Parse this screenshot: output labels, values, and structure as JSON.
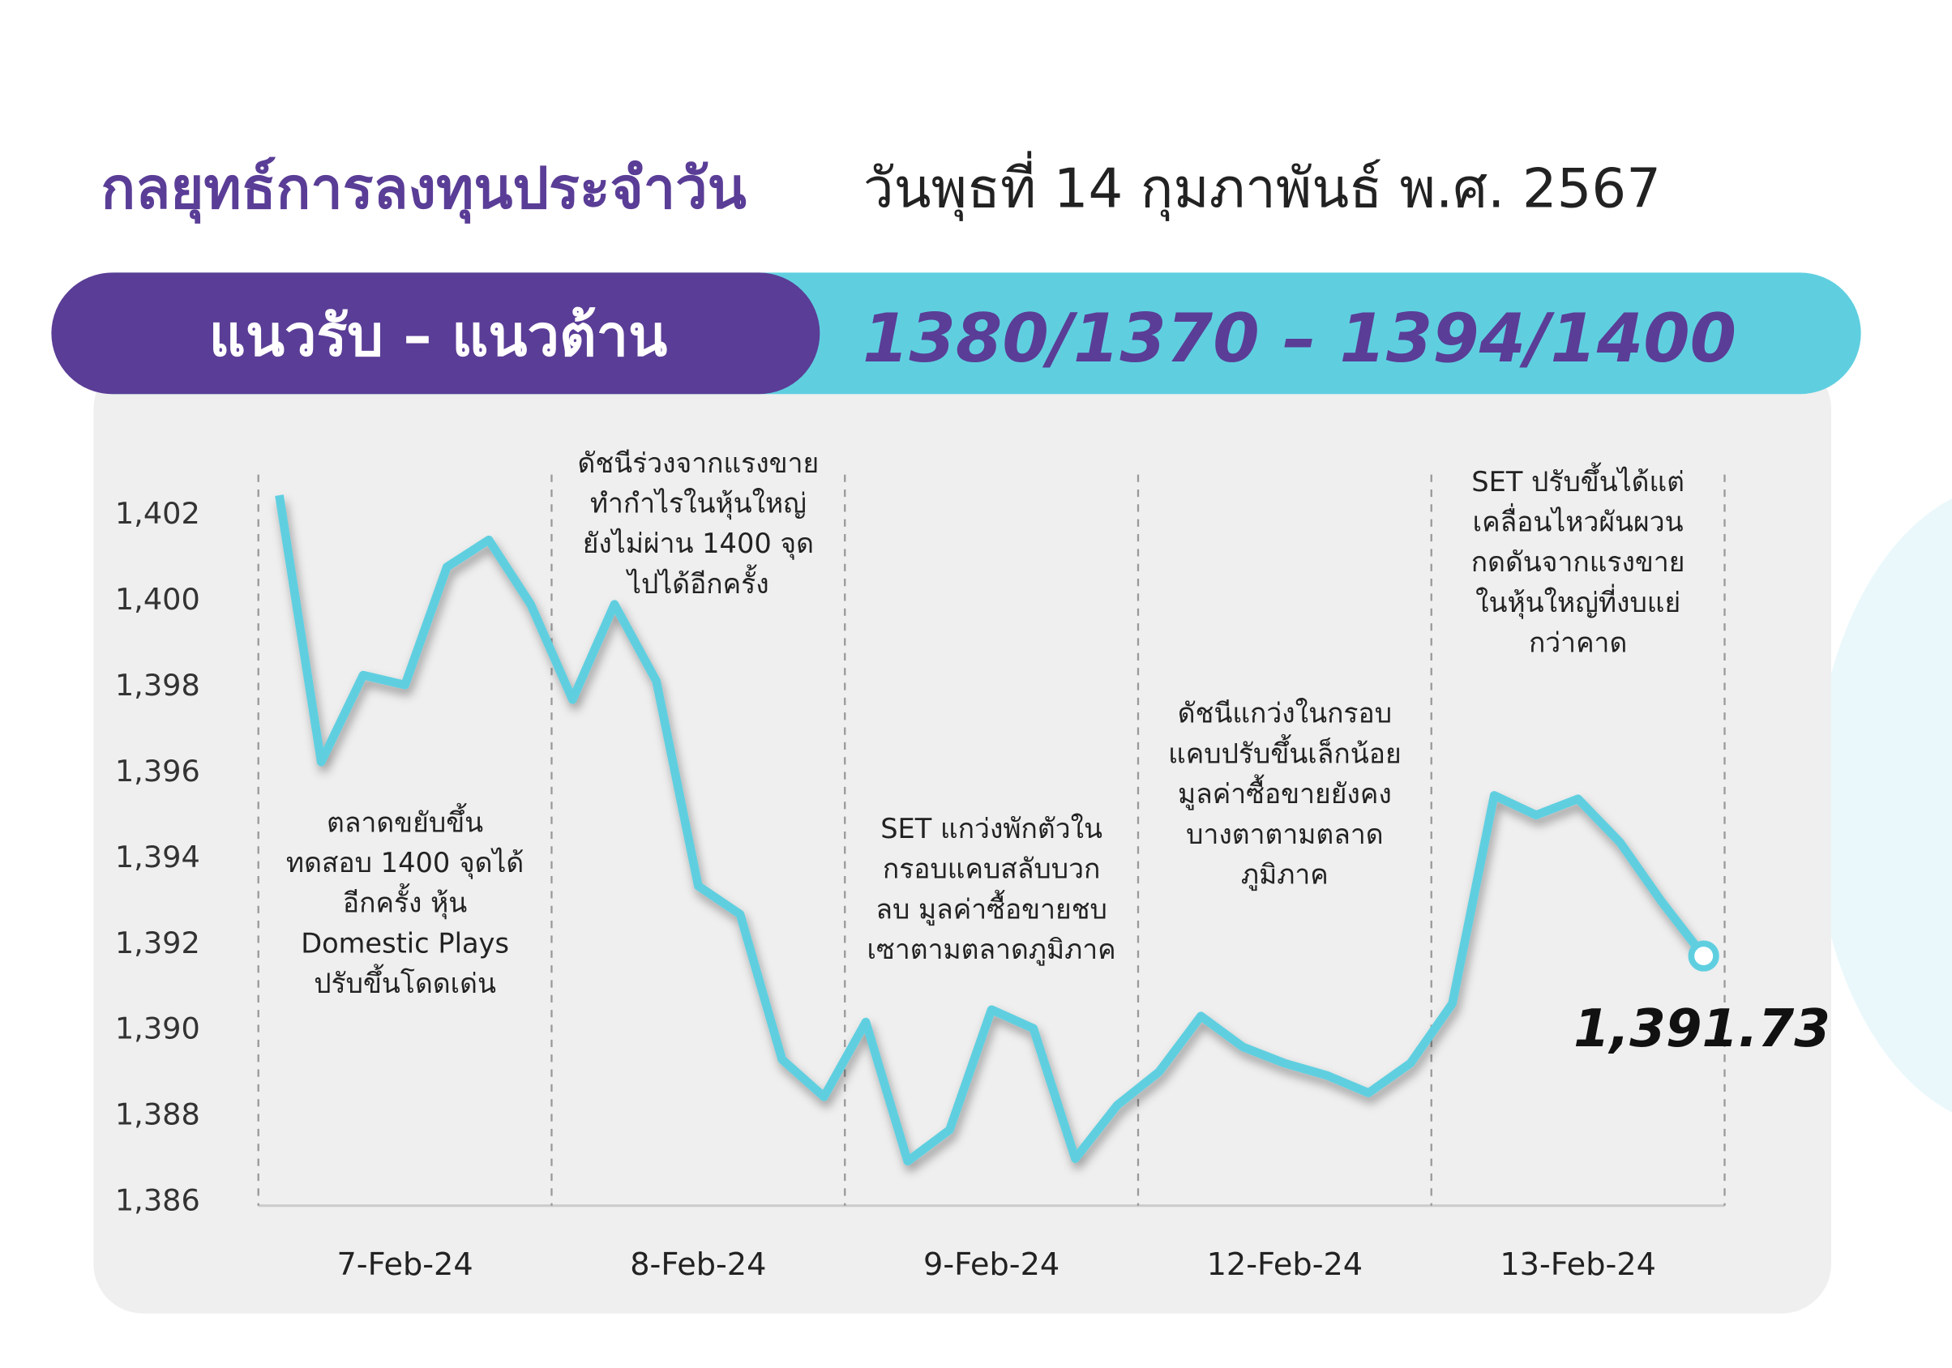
{
  "header": {
    "title": "กลยุทธ์การลงทุนประจำวัน",
    "date": "วันพุธที่ 14 กุมภาพันธ์ พ.ศ. 2567",
    "band_label": "แนวรับ – แนวต้าน",
    "band_value": "1380/1370 – 1394/1400"
  },
  "chart_data": {
    "type": "line",
    "color": "#5fcfe0",
    "categories": [
      null,
      null,
      null,
      "7-Feb-24",
      null,
      null,
      null,
      null,
      null,
      null,
      "8-Feb-24",
      null,
      null,
      null,
      null,
      null,
      null,
      "9-Feb-24",
      null,
      null,
      null,
      null,
      null,
      null,
      "12-Feb-24",
      null,
      null,
      null,
      null,
      null,
      null,
      "13-Feb-24",
      null,
      null,
      null
    ],
    "values": [
      1402.46,
      1396.25,
      1398.27,
      1398.04,
      1400.79,
      1401.42,
      1399.92,
      1397.7,
      1399.92,
      1398.13,
      1393.36,
      1392.7,
      1389.32,
      1388.45,
      1390.19,
      1386.95,
      1387.68,
      1390.48,
      1390.04,
      1387.01,
      1388.25,
      1389.03,
      1390.33,
      1389.61,
      1389.23,
      1388.95,
      1388.54,
      1389.23,
      1390.62,
      1395.47,
      1395.01,
      1395.39,
      1394.38,
      1392.99,
      1391.73
    ],
    "value_labels": [
      null,
      null,
      null,
      null,
      null,
      null,
      null,
      null,
      null,
      null,
      null,
      null,
      null,
      null,
      null,
      null,
      null,
      null,
      null,
      null,
      null,
      null,
      null,
      null,
      null,
      null,
      null,
      null,
      null,
      null,
      null,
      null,
      null,
      null,
      "1,391.73"
    ],
    "ylim": [
      1386,
      1403
    ],
    "yticks": [
      {
        "value": 1386,
        "label": "1,386"
      },
      {
        "value": 1388,
        "label": "1,388"
      },
      {
        "value": 1390,
        "label": "1,390"
      },
      {
        "value": 1392,
        "label": "1,392"
      },
      {
        "value": 1394,
        "label": "1,394"
      },
      {
        "value": 1396,
        "label": "1,396"
      },
      {
        "value": 1398,
        "label": "1,398"
      },
      {
        "value": 1400,
        "label": "1,400"
      },
      {
        "value": 1402,
        "label": "1,402"
      }
    ],
    "annotations": [
      [
        "ตลาดขยับขึ้น",
        "ทดสอบ 1400 จุดได้",
        "อีกครั้ง หุ้น",
        "Domestic Plays",
        "ปรับขึ้นโดดเด่น"
      ],
      [
        "ดัชนีร่วงจากแรงขาย",
        "ทำกำไรในหุ้นใหญ่",
        "ยังไม่ผ่าน 1400 จุด",
        "ไปได้อีกครั้ง"
      ],
      [
        "SET แกว่งพักตัวใน",
        "กรอบแคบสลับบวก",
        "ลบ มูลค่าซื้อขายชบ",
        "เซาตามตลาดภูมิภาค"
      ],
      [
        "ดัชนีแกว่งในกรอบ",
        "แคบปรับขึ้นเล็กน้อย",
        "มูลค่าซื้อขายยังคง",
        "บางตาตามตลาด",
        "ภูมิภาค"
      ],
      [
        "SET ปรับขึ้นได้แต่",
        "เคลื่อนไหวผันผวน",
        "กดดันจากแรงขาย",
        "ในหุ้นใหญ่ที่งบแย่",
        "กว่าคาด"
      ]
    ]
  }
}
